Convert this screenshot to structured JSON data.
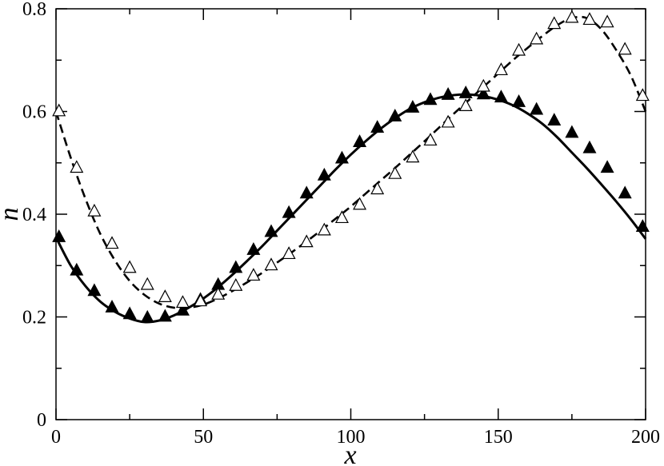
{
  "chart_data": {
    "type": "line",
    "title": "",
    "xlabel": "x",
    "ylabel": "n",
    "xlim": [
      0,
      200
    ],
    "ylim": [
      0,
      0.8
    ],
    "x_ticks": [
      0,
      50,
      100,
      150,
      200
    ],
    "y_ticks": [
      0,
      0.2,
      0.4,
      0.6,
      0.8
    ],
    "x_tick_labels": [
      "0",
      "50",
      "100",
      "150",
      "200"
    ],
    "y_tick_labels": [
      "0",
      "0.2",
      "0.4",
      "0.6",
      "0.8"
    ],
    "grid": false,
    "series": [
      {
        "style": "solid",
        "color": "#000000",
        "line": {
          "x": [
            0,
            5,
            10,
            15,
            20,
            25,
            30,
            35,
            40,
            45,
            50,
            55,
            60,
            65,
            70,
            75,
            80,
            85,
            90,
            95,
            100,
            105,
            110,
            115,
            120,
            125,
            130,
            135,
            140,
            145,
            150,
            155,
            160,
            165,
            170,
            175,
            180,
            185,
            190,
            195,
            200
          ],
          "y": [
            0.355,
            0.3,
            0.26,
            0.23,
            0.21,
            0.197,
            0.19,
            0.193,
            0.203,
            0.218,
            0.236,
            0.258,
            0.283,
            0.31,
            0.338,
            0.368,
            0.398,
            0.428,
            0.458,
            0.488,
            0.516,
            0.542,
            0.566,
            0.587,
            0.605,
            0.618,
            0.627,
            0.632,
            0.633,
            0.63,
            0.623,
            0.612,
            0.596,
            0.576,
            0.55,
            0.52,
            0.49,
            0.458,
            0.425,
            0.39,
            0.352
          ]
        },
        "marker": "filled-triangle",
        "points": {
          "x": [
            1,
            7,
            13,
            19,
            25,
            31,
            37,
            43,
            49,
            55,
            61,
            67,
            73,
            79,
            85,
            91,
            97,
            103,
            109,
            115,
            121,
            127,
            133,
            139,
            145,
            151,
            157,
            163,
            169,
            175,
            181,
            187,
            193,
            199
          ],
          "y": [
            0.355,
            0.29,
            0.25,
            0.218,
            0.205,
            0.198,
            0.2,
            0.212,
            0.233,
            0.262,
            0.295,
            0.33,
            0.365,
            0.402,
            0.44,
            0.475,
            0.508,
            0.54,
            0.568,
            0.59,
            0.607,
            0.622,
            0.632,
            0.635,
            0.633,
            0.627,
            0.618,
            0.603,
            0.582,
            0.558,
            0.528,
            0.49,
            0.44,
            0.375
          ]
        }
      },
      {
        "style": "dashed",
        "color": "#000000",
        "line": {
          "x": [
            0,
            5,
            10,
            15,
            20,
            25,
            30,
            35,
            40,
            45,
            50,
            55,
            60,
            65,
            70,
            75,
            80,
            85,
            90,
            95,
            100,
            105,
            110,
            115,
            120,
            125,
            130,
            135,
            140,
            145,
            150,
            155,
            160,
            165,
            170,
            175,
            180,
            185,
            190,
            195,
            200
          ],
          "y": [
            0.6,
            0.51,
            0.43,
            0.362,
            0.31,
            0.27,
            0.243,
            0.226,
            0.218,
            0.218,
            0.224,
            0.236,
            0.251,
            0.268,
            0.286,
            0.306,
            0.326,
            0.347,
            0.369,
            0.392,
            0.415,
            0.44,
            0.465,
            0.49,
            0.516,
            0.542,
            0.569,
            0.596,
            0.622,
            0.648,
            0.674,
            0.7,
            0.724,
            0.747,
            0.768,
            0.782,
            0.782,
            0.76,
            0.72,
            0.67,
            0.6
          ]
        },
        "marker": "open-triangle",
        "points": {
          "x": [
            1,
            7,
            13,
            19,
            25,
            31,
            37,
            43,
            49,
            55,
            61,
            67,
            73,
            79,
            85,
            91,
            97,
            103,
            109,
            115,
            121,
            127,
            133,
            139,
            145,
            151,
            157,
            163,
            169,
            175,
            181,
            187,
            193,
            199
          ],
          "y": [
            0.6,
            0.49,
            0.405,
            0.342,
            0.295,
            0.262,
            0.238,
            0.227,
            0.23,
            0.243,
            0.26,
            0.28,
            0.3,
            0.322,
            0.345,
            0.368,
            0.392,
            0.418,
            0.448,
            0.478,
            0.51,
            0.543,
            0.578,
            0.61,
            0.648,
            0.68,
            0.718,
            0.74,
            0.77,
            0.782,
            0.778,
            0.773,
            0.72,
            0.63
          ]
        }
      }
    ]
  }
}
